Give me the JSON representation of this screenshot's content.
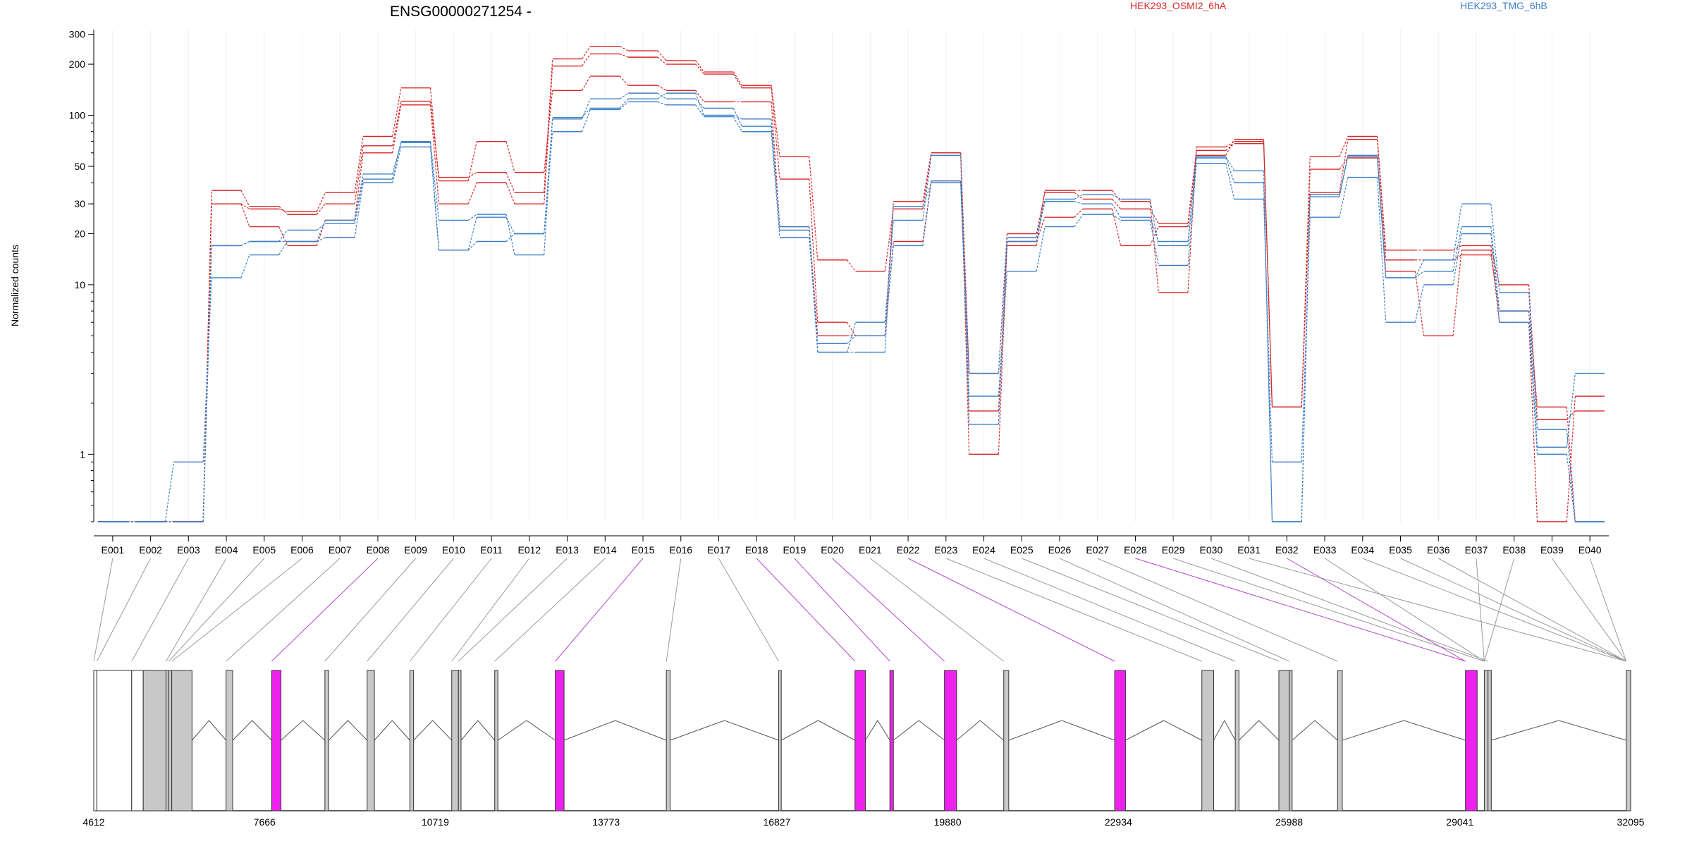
{
  "chart_data": {
    "type": "line",
    "title": "ENSG00000271254 -",
    "ylabel": "Normalized counts",
    "yscale": "log",
    "ylim": [
      0.4,
      320
    ],
    "yticks": [
      1,
      10,
      20,
      30,
      50,
      100,
      200,
      300
    ],
    "grid": "vertical",
    "legend": [
      "HEK293_OSMI2_6hA",
      "HEK293_TMG_6hB"
    ],
    "colors": {
      "red": "#d62728",
      "blue": "#3d7fc4",
      "highlight": "#ee22ee",
      "exon": "#c8c8c8",
      "line": "#808080"
    },
    "categories": [
      "E001",
      "E002",
      "E003",
      "E004",
      "E005",
      "E006",
      "E007",
      "E008",
      "E009",
      "E010",
      "E011",
      "E012",
      "E013",
      "E014",
      "E015",
      "E016",
      "E017",
      "E018",
      "E019",
      "E020",
      "E021",
      "E022",
      "E023",
      "E024",
      "E025",
      "E026",
      "E027",
      "E028",
      "E029",
      "E030",
      "E031",
      "E032",
      "E033",
      "E034",
      "E035",
      "E036",
      "E037",
      "E038",
      "E039",
      "E040"
    ],
    "series": [
      {
        "color": "red",
        "values": [
          0.4,
          0.4,
          0.4,
          30,
          22,
          17,
          24,
          60,
          115,
          30,
          40,
          30,
          195,
          230,
          220,
          200,
          175,
          145,
          42,
          6,
          5,
          18,
          41,
          1.8,
          18,
          25,
          28,
          17,
          22,
          58,
          72,
          1.9,
          48,
          56,
          12,
          5,
          16,
          6,
          0.4,
          2.2
        ]
      },
      {
        "color": "red",
        "values": [
          0.4,
          0.4,
          0.4,
          36,
          29,
          26,
          30,
          66,
          121,
          43,
          46,
          35,
          215,
          255,
          240,
          210,
          180,
          150,
          57,
          14,
          12,
          28,
          60,
          3,
          20,
          35,
          32,
          28,
          23,
          62,
          68,
          1.9,
          57,
          75,
          16,
          16,
          17,
          10,
          1.6,
          1.8
        ]
      },
      {
        "color": "red",
        "values": [
          0.4,
          0.4,
          0.4,
          30,
          28,
          27,
          35,
          75,
          145,
          41,
          70,
          46,
          140,
          170,
          150,
          140,
          120,
          120,
          22,
          5,
          5,
          31,
          60,
          1,
          17,
          36,
          36,
          31,
          9,
          65,
          70,
          1.9,
          35,
          72,
          14,
          14,
          15,
          7,
          1.9,
          0.4
        ]
      },
      {
        "color": "blue",
        "values": [
          0.4,
          0.4,
          0.9,
          11,
          15,
          18,
          19,
          40,
          65,
          16,
          18,
          20,
          80,
          108,
          120,
          115,
          98,
          80,
          19,
          4.5,
          5,
          17,
          41,
          2.2,
          12,
          22,
          26,
          24,
          13,
          52,
          32,
          0.9,
          25,
          43,
          6,
          10,
          20,
          6,
          1,
          0.4
        ]
      },
      {
        "color": "blue",
        "values": [
          0.4,
          0.4,
          0.4,
          17,
          18,
          21,
          23,
          42,
          70,
          24,
          26,
          15,
          97,
          110,
          125,
          135,
          100,
          95,
          21,
          4,
          6,
          24,
          58,
          1.5,
          18,
          31,
          30,
          25,
          18,
          56,
          40,
          0.4,
          33,
          57,
          11,
          12,
          22,
          7,
          1.1,
          3
        ]
      },
      {
        "color": "blue",
        "values": [
          0.4,
          0.4,
          0.4,
          17,
          18,
          18,
          24,
          45,
          69,
          16,
          25,
          20,
          95,
          125,
          135,
          125,
          110,
          86,
          22,
          4,
          4,
          29,
          40,
          3,
          19,
          32,
          34,
          32,
          17,
          57,
          47,
          0.4,
          34,
          58,
          11,
          14,
          30,
          9,
          1.4,
          0.4
        ]
      }
    ]
  },
  "gene_model": {
    "coord_labels": [
      "4612",
      "7666",
      "10719",
      "13773",
      "16827",
      "19880",
      "22934",
      "25988",
      "29041",
      "32095"
    ],
    "exons": [
      {
        "start": 4612,
        "end": 4667,
        "style": "white"
      },
      {
        "start": 4667,
        "end": 5290,
        "style": "white"
      },
      {
        "start": 5290,
        "end": 5497,
        "style": "white"
      },
      {
        "start": 5497,
        "end": 5904,
        "style": "gray"
      },
      {
        "start": 5904,
        "end": 5953,
        "style": "gray"
      },
      {
        "start": 5953,
        "end": 6007,
        "style": "gray"
      },
      {
        "start": 6007,
        "end": 6369,
        "style": "gray"
      },
      {
        "start": 6977,
        "end": 7096,
        "style": "gray"
      },
      {
        "start": 7793,
        "end": 7960,
        "style": "highlight"
      },
      {
        "start": 8745,
        "end": 8812,
        "style": "gray"
      },
      {
        "start": 9500,
        "end": 9630,
        "style": "gray"
      },
      {
        "start": 10265,
        "end": 10331,
        "style": "gray"
      },
      {
        "start": 11013,
        "end": 11133,
        "style": "gray"
      },
      {
        "start": 11133,
        "end": 11180,
        "style": "gray"
      },
      {
        "start": 11782,
        "end": 11839,
        "style": "gray"
      },
      {
        "start": 12865,
        "end": 13022,
        "style": "highlight"
      },
      {
        "start": 14851,
        "end": 14919,
        "style": "gray"
      },
      {
        "start": 16859,
        "end": 16906,
        "style": "gray"
      },
      {
        "start": 18224,
        "end": 18410,
        "style": "highlight"
      },
      {
        "start": 18848,
        "end": 18911,
        "style": "highlight"
      },
      {
        "start": 19824,
        "end": 20041,
        "style": "highlight"
      },
      {
        "start": 20884,
        "end": 20974,
        "style": "gray"
      },
      {
        "start": 22868,
        "end": 23061,
        "style": "highlight"
      },
      {
        "start": 24427,
        "end": 24638,
        "style": "gray"
      },
      {
        "start": 25024,
        "end": 25091,
        "style": "gray"
      },
      {
        "start": 25804,
        "end": 25991,
        "style": "gray"
      },
      {
        "start": 25991,
        "end": 26041,
        "style": "gray"
      },
      {
        "start": 26854,
        "end": 26938,
        "style": "gray"
      },
      {
        "start": 29141,
        "end": 29350,
        "style": "highlight"
      },
      {
        "start": 29478,
        "end": 29544,
        "style": "gray"
      },
      {
        "start": 29544,
        "end": 29603,
        "style": "gray"
      },
      {
        "start": 32016,
        "end": 32095,
        "style": "gray"
      }
    ]
  }
}
